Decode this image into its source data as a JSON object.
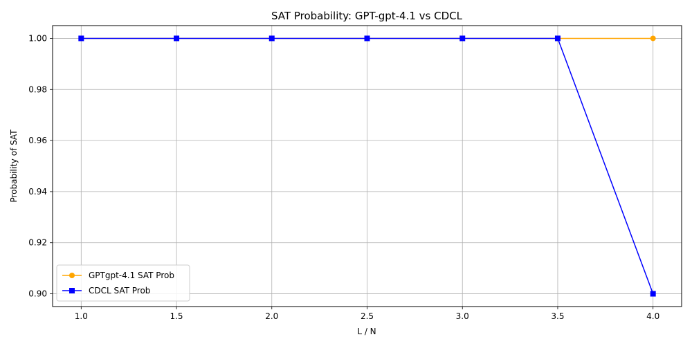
{
  "chart_data": {
    "type": "line",
    "title": "SAT Probability: GPT-gpt-4.1 vs CDCL",
    "xlabel": "L / N",
    "ylabel": "Probability of SAT",
    "x": [
      1.0,
      1.5,
      2.0,
      2.5,
      3.0,
      3.5,
      4.0
    ],
    "xlim": [
      0.85,
      4.15
    ],
    "ylim": [
      0.895,
      1.005
    ],
    "xticks": [
      "1.0",
      "1.5",
      "2.0",
      "2.5",
      "3.0",
      "3.5",
      "4.0"
    ],
    "yticks": [
      "0.90",
      "0.92",
      "0.94",
      "0.96",
      "0.98",
      "1.00"
    ],
    "grid": true,
    "legend_position": "lower-left",
    "series": [
      {
        "name": "GPTgpt-4.1 SAT Prob",
        "color": "#ffa500",
        "marker": "circle",
        "values": [
          1.0,
          1.0,
          1.0,
          1.0,
          1.0,
          1.0,
          1.0
        ]
      },
      {
        "name": "CDCL SAT Prob",
        "color": "#0000ff",
        "marker": "square",
        "values": [
          1.0,
          1.0,
          1.0,
          1.0,
          1.0,
          1.0,
          0.9
        ]
      }
    ]
  }
}
